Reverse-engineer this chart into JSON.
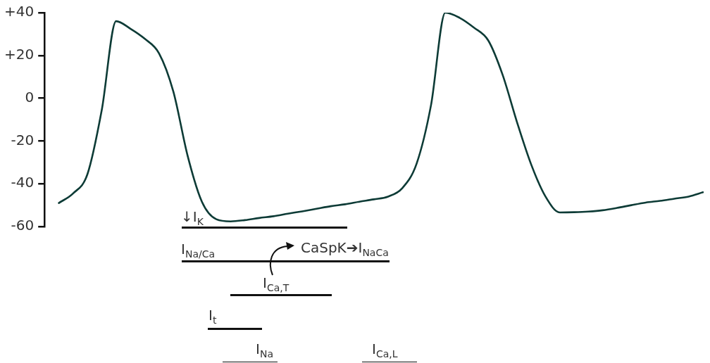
{
  "chart_data": {
    "type": "line",
    "categories": [
      null,
      null,
      null,
      null,
      null,
      null,
      null,
      null,
      null,
      null,
      null,
      null,
      null,
      null,
      null,
      null,
      null,
      null,
      null,
      null,
      null,
      null,
      null,
      null,
      null,
      null,
      null,
      null,
      null,
      null,
      null,
      null,
      null,
      null,
      null,
      null,
      null,
      null,
      null,
      null,
      null,
      null,
      null,
      null,
      null,
      null,
      null
    ],
    "series": [
      {
        "color": "#0d3b36",
        "values": [
          null,
          -49,
          -44.5,
          -35.5,
          -5.5,
          36,
          32.5,
          27.8,
          21,
          3.1,
          -27,
          -48.5,
          -56.6,
          -57.6,
          -57,
          -56,
          -55.2,
          -54,
          -52.9,
          -51.7,
          -50.5,
          -49.6,
          -48.4,
          -47.3,
          -46,
          -42,
          -30.5,
          -3.3,
          40,
          37.6,
          33,
          27,
          11,
          -11,
          -31,
          -46,
          -53.4,
          -53.3,
          -53,
          -52.4,
          -51.3,
          -50,
          -48.8,
          -48,
          -47,
          -46,
          -44
        ]
      }
    ],
    "ylim": [
      -60,
      40
    ],
    "yticks": [
      {
        "value": 40,
        "label": "+40"
      },
      {
        "value": 20,
        "label": "+20"
      },
      0,
      -20,
      -40,
      -60
    ],
    "tick_labels": "y",
    "grid": false,
    "legend": false,
    "marker": "none",
    "line_style": "solid",
    "annotations": [
      "↓I$_{K}$",
      "I$_{Na/Ca}$",
      "CaSpK➔I$_{NaCa}$",
      "I$_{Ca,T}$",
      "I$_{t}$",
      "I$_{Na}$",
      "I$_{Ca,L}$"
    ]
  }
}
